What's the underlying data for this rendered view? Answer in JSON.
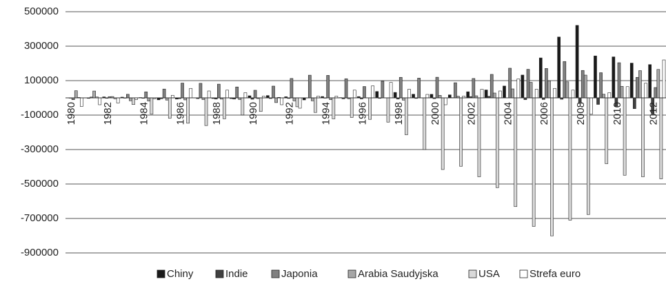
{
  "chart_data": {
    "type": "bar",
    "categories": [
      "1980",
      null,
      "1982",
      null,
      "1984",
      null,
      "1986",
      null,
      "1988",
      null,
      "1990",
      null,
      "1992",
      null,
      "1994",
      null,
      "1996",
      null,
      "1998",
      null,
      "2000",
      null,
      "2002",
      null,
      "2004",
      null,
      "2006",
      null,
      "2008",
      null,
      "2010",
      null,
      "2012"
    ],
    "series": [
      {
        "name": "Chiny",
        "color": "#1a1a1a",
        "values": [
          0,
          0,
          5700,
          4200,
          2000,
          -11400,
          -7000,
          300,
          -3800,
          -4300,
          12000,
          13300,
          6400,
          -11900,
          7700,
          1600,
          7200,
          37000,
          31500,
          21100,
          20500,
          17400,
          35400,
          45900,
          68700,
          132400,
          231800,
          353200,
          420600,
          243300,
          237800,
          201700,
          193100
        ]
      },
      {
        "name": "Indie",
        "color": "#404040",
        "values": [
          -2000,
          -3000,
          -2500,
          -2000,
          -2500,
          -5000,
          -4500,
          -4500,
          -7000,
          -7000,
          -8000,
          -4000,
          -3500,
          -1000,
          -2000,
          -5500,
          -6000,
          -3000,
          -7000,
          -3200,
          -4600,
          1400,
          7100,
          8800,
          800,
          -10300,
          -9300,
          -8100,
          -28000,
          -38000,
          -48000,
          -62500,
          -91500
        ]
      },
      {
        "name": "Japonia",
        "color": "#808080",
        "values": [
          -10700,
          4800,
          6900,
          20800,
          35000,
          51100,
          85800,
          84400,
          79600,
          63200,
          44100,
          68200,
          112600,
          131600,
          130300,
          111000,
          65800,
          96600,
          119100,
          114500,
          119600,
          87800,
          112400,
          136200,
          172100,
          165700,
          170500,
          211000,
          159000,
          146000,
          204000,
          119000,
          60000
        ]
      },
      {
        "name": "Arabia Saudyjska",
        "color": "#a6a6a6",
        "values": [
          41500,
          39600,
          7600,
          -16900,
          -18400,
          -12900,
          -11800,
          -9800,
          -7300,
          -9500,
          -4100,
          -27500,
          -17700,
          -17300,
          -10500,
          -5300,
          700,
          300,
          -13100,
          400,
          14300,
          9400,
          11900,
          28000,
          52000,
          90000,
          99000,
          93000,
          132000,
          21000,
          67000,
          158000,
          165000
        ]
      },
      {
        "name": "USA",
        "color": "#d9d9d9",
        "values": [
          2300,
          5000,
          -5500,
          -38700,
          -94300,
          -118200,
          -147200,
          -160700,
          -121200,
          -99500,
          -79000,
          2900,
          -51600,
          -84800,
          -121600,
          -113600,
          -124800,
          -140900,
          -214100,
          -300000,
          -416000,
          -397000,
          -458000,
          -521000,
          -631000,
          -746000,
          -801000,
          -710000,
          -677000,
          -382000,
          -449000,
          -458000,
          -470000
        ]
      },
      {
        "name": "Strefa euro",
        "color": "#ffffff",
        "values": [
          -50000,
          -40000,
          -30000,
          -10000,
          -5000,
          15000,
          55000,
          40000,
          45000,
          30000,
          10000,
          -40000,
          -60000,
          10000,
          10000,
          45000,
          70000,
          90000,
          50000,
          20000,
          -40000,
          10000,
          50000,
          40000,
          110000,
          50000,
          55000,
          45000,
          -95000,
          30000,
          65000,
          85000,
          220000
        ]
      }
    ],
    "ylim": [
      -900000,
      500000
    ],
    "yticks": [
      -900000,
      -700000,
      -500000,
      -300000,
      -100000,
      100000,
      300000,
      500000
    ],
    "grid": true,
    "legend": "bottom"
  }
}
